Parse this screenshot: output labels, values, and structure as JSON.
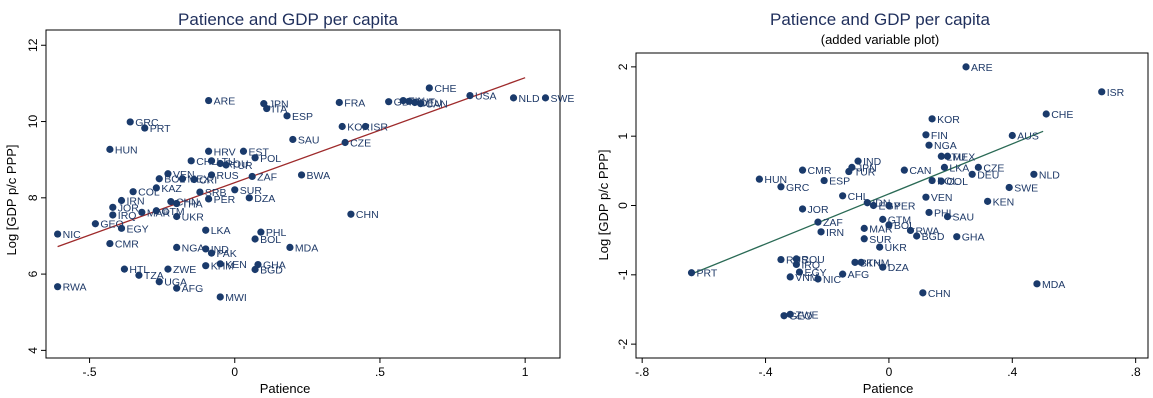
{
  "chart_data": [
    {
      "type": "scatter",
      "title": "Patience and GDP per capita",
      "subtitle": "",
      "xlabel": "Patience",
      "ylabel": "Log [GDP p/c PPP]",
      "xlim": [
        -0.65,
        1.12
      ],
      "ylim": [
        3.8,
        12.4
      ],
      "xticks": [
        -0.5,
        0,
        0.5,
        1
      ],
      "xtick_labels": [
        "-.5",
        "0",
        ".5",
        "1"
      ],
      "yticks": [
        4,
        6,
        8,
        10,
        12
      ],
      "ytick_labels": [
        "4",
        "6",
        "8",
        "10",
        "12"
      ],
      "point_color": "#1a3a6b",
      "fit_line": {
        "x": [
          -0.61,
          1.0
        ],
        "y": [
          6.72,
          11.15
        ],
        "color": "#9e2a2b"
      },
      "points": [
        {
          "label": "ARE",
          "x": -0.09,
          "y": 10.55
        },
        {
          "label": "JPN",
          "x": 0.1,
          "y": 10.47
        },
        {
          "label": "ITA",
          "x": 0.11,
          "y": 10.34
        },
        {
          "label": "ESP",
          "x": 0.18,
          "y": 10.15
        },
        {
          "label": "FRA",
          "x": 0.36,
          "y": 10.5
        },
        {
          "label": "GBR",
          "x": 0.53,
          "y": 10.52
        },
        {
          "label": "FIN",
          "x": 0.58,
          "y": 10.55
        },
        {
          "label": "AUT",
          "x": 0.6,
          "y": 10.53
        },
        {
          "label": "DEU",
          "x": 0.62,
          "y": 10.5
        },
        {
          "label": "CAN",
          "x": 0.64,
          "y": 10.47
        },
        {
          "label": "CHE",
          "x": 0.67,
          "y": 10.88
        },
        {
          "label": "USA",
          "x": 0.81,
          "y": 10.68
        },
        {
          "label": "NLD",
          "x": 0.96,
          "y": 10.62
        },
        {
          "label": "SWE",
          "x": 1.07,
          "y": 10.62
        },
        {
          "label": "KOR",
          "x": 0.37,
          "y": 9.87
        },
        {
          "label": "ISR",
          "x": 0.45,
          "y": 9.87
        },
        {
          "label": "CZE",
          "x": 0.38,
          "y": 9.45
        },
        {
          "label": "SAU",
          "x": 0.2,
          "y": 9.53
        },
        {
          "label": "GRC",
          "x": -0.36,
          "y": 9.99
        },
        {
          "label": "PRT",
          "x": -0.31,
          "y": 9.83
        },
        {
          "label": "HUN",
          "x": -0.43,
          "y": 9.27
        },
        {
          "label": "HRV",
          "x": -0.09,
          "y": 9.22
        },
        {
          "label": "EST",
          "x": 0.03,
          "y": 9.22
        },
        {
          "label": "POL",
          "x": 0.07,
          "y": 9.05
        },
        {
          "label": "CHL",
          "x": -0.15,
          "y": 8.97
        },
        {
          "label": "LTU",
          "x": -0.08,
          "y": 8.97
        },
        {
          "label": "ROU",
          "x": -0.05,
          "y": 8.9
        },
        {
          "label": "TUR",
          "x": -0.03,
          "y": 8.86
        },
        {
          "label": "BWA",
          "x": 0.23,
          "y": 8.6
        },
        {
          "label": "RUS",
          "x": -0.08,
          "y": 8.6
        },
        {
          "label": "ZAF",
          "x": 0.06,
          "y": 8.56
        },
        {
          "label": "VEN",
          "x": -0.23,
          "y": 8.63
        },
        {
          "label": "BOL",
          "x": -0.26,
          "y": 8.5
        },
        {
          "label": "MEX",
          "x": -0.18,
          "y": 8.5
        },
        {
          "label": "CRI",
          "x": -0.14,
          "y": 8.48
        },
        {
          "label": "KAZ",
          "x": -0.27,
          "y": 8.26
        },
        {
          "label": "COL",
          "x": -0.35,
          "y": 8.16
        },
        {
          "label": "SRB",
          "x": -0.12,
          "y": 8.15
        },
        {
          "label": "SUR",
          "x": 0.0,
          "y": 8.21
        },
        {
          "label": "DZA",
          "x": 0.05,
          "y": 8.0
        },
        {
          "label": "PER",
          "x": -0.09,
          "y": 7.97
        },
        {
          "label": "IRN",
          "x": -0.39,
          "y": 7.93
        },
        {
          "label": "CHN_left",
          "x": -0.22,
          "y": 7.9
        },
        {
          "label": "THA",
          "x": -0.2,
          "y": 7.85
        },
        {
          "label": "JOR",
          "x": -0.42,
          "y": 7.75
        },
        {
          "label": "MAR",
          "x": -0.32,
          "y": 7.62
        },
        {
          "label": "GTM",
          "x": -0.27,
          "y": 7.66
        },
        {
          "label": "IRQ",
          "x": -0.42,
          "y": 7.55
        },
        {
          "label": "UKR",
          "x": -0.2,
          "y": 7.51
        },
        {
          "label": "CHN",
          "x": 0.4,
          "y": 7.57
        },
        {
          "label": "GEO",
          "x": -0.48,
          "y": 7.32
        },
        {
          "label": "EGY",
          "x": -0.39,
          "y": 7.2
        },
        {
          "label": "LKA",
          "x": -0.1,
          "y": 7.15
        },
        {
          "label": "PHL",
          "x": 0.09,
          "y": 7.1
        },
        {
          "label": "BOL2",
          "x": 0.07,
          "y": 6.92
        },
        {
          "label": "NIC",
          "x": -0.61,
          "y": 7.05
        },
        {
          "label": "CMR",
          "x": -0.43,
          "y": 6.8
        },
        {
          "label": "MDA",
          "x": 0.19,
          "y": 6.7
        },
        {
          "label": "NGA",
          "x": -0.2,
          "y": 6.7
        },
        {
          "label": "IND",
          "x": -0.1,
          "y": 6.66
        },
        {
          "label": "PAK",
          "x": -0.08,
          "y": 6.55
        },
        {
          "label": "KHM",
          "x": -0.1,
          "y": 6.22
        },
        {
          "label": "KEN",
          "x": -0.05,
          "y": 6.27
        },
        {
          "label": "GHA",
          "x": 0.08,
          "y": 6.25
        },
        {
          "label": "BGD",
          "x": 0.07,
          "y": 6.12
        },
        {
          "label": "HTL",
          "x": -0.38,
          "y": 6.13
        },
        {
          "label": "ZWE",
          "x": -0.23,
          "y": 6.13
        },
        {
          "label": "TZA",
          "x": -0.33,
          "y": 5.97
        },
        {
          "label": "UGA",
          "x": -0.26,
          "y": 5.8
        },
        {
          "label": "AFG",
          "x": -0.2,
          "y": 5.63
        },
        {
          "label": "RWA",
          "x": -0.61,
          "y": 5.67
        },
        {
          "label": "MWI",
          "x": -0.05,
          "y": 5.4
        }
      ]
    },
    {
      "type": "scatter",
      "title": "Patience and GDP per capita",
      "subtitle": "(added variable plot)",
      "xlabel": "Patience",
      "ylabel": "Log [GDP p/c PPP]",
      "xlim": [
        -0.82,
        0.84
      ],
      "ylim": [
        -2.2,
        2.2
      ],
      "xticks": [
        -0.8,
        -0.4,
        0,
        0.4,
        0.8
      ],
      "xtick_labels": [
        "-.8",
        "-.4",
        "0",
        ".4",
        ".8"
      ],
      "yticks": [
        -2,
        -1,
        0,
        1,
        2
      ],
      "ytick_labels": [
        "-2",
        "-1",
        "0",
        "1",
        "2"
      ],
      "point_color": "#1a3a6b",
      "fit_line": {
        "x": [
          -0.63,
          0.5
        ],
        "y": [
          -0.97,
          1.07
        ],
        "color": "#2a6a55"
      },
      "points": [
        {
          "label": "ARE",
          "x": 0.25,
          "y": 2.0
        },
        {
          "label": "ISR",
          "x": 0.69,
          "y": 1.64
        },
        {
          "label": "CHE",
          "x": 0.51,
          "y": 1.32
        },
        {
          "label": "KOR",
          "x": 0.14,
          "y": 1.25
        },
        {
          "label": "FIN",
          "x": 0.12,
          "y": 1.02
        },
        {
          "label": "AUS",
          "x": 0.4,
          "y": 1.01
        },
        {
          "label": "NGA",
          "x": 0.13,
          "y": 0.87
        },
        {
          "label": "LTU",
          "x": 0.17,
          "y": 0.71
        },
        {
          "label": "MEX",
          "x": 0.19,
          "y": 0.71
        },
        {
          "label": "IND",
          "x": -0.1,
          "y": 0.64
        },
        {
          "label": "JPN",
          "x": -0.12,
          "y": 0.55
        },
        {
          "label": "TUR",
          "x": -0.13,
          "y": 0.49
        },
        {
          "label": "CMR",
          "x": -0.28,
          "y": 0.51
        },
        {
          "label": "CAN",
          "x": 0.05,
          "y": 0.51
        },
        {
          "label": "LKA",
          "x": 0.18,
          "y": 0.55
        },
        {
          "label": "CZE",
          "x": 0.29,
          "y": 0.55
        },
        {
          "label": "DEU",
          "x": 0.27,
          "y": 0.45
        },
        {
          "label": "NLD",
          "x": 0.47,
          "y": 0.45
        },
        {
          "label": "HUN",
          "x": -0.42,
          "y": 0.38
        },
        {
          "label": "GRC",
          "x": -0.35,
          "y": 0.27
        },
        {
          "label": "ESP",
          "x": -0.21,
          "y": 0.36
        },
        {
          "label": "POL",
          "x": 0.14,
          "y": 0.36
        },
        {
          "label": "COL",
          "x": 0.17,
          "y": 0.35
        },
        {
          "label": "SWE",
          "x": 0.39,
          "y": 0.26
        },
        {
          "label": "CHL",
          "x": -0.15,
          "y": 0.14
        },
        {
          "label": "VEN",
          "x": 0.12,
          "y": 0.12
        },
        {
          "label": "KEN",
          "x": 0.32,
          "y": 0.06
        },
        {
          "label": "JOR",
          "x": -0.28,
          "y": -0.05
        },
        {
          "label": "IDN",
          "x": -0.07,
          "y": 0.04
        },
        {
          "label": "PER",
          "x": 0.0,
          "y": 0.0
        },
        {
          "label": "EGY",
          "x": -0.05,
          "y": 0.0
        },
        {
          "label": "PHL",
          "x": 0.13,
          "y": -0.1
        },
        {
          "label": "SAU",
          "x": 0.19,
          "y": -0.16
        },
        {
          "label": "ZAF",
          "x": -0.23,
          "y": -0.24
        },
        {
          "label": "GTM",
          "x": -0.02,
          "y": -0.2
        },
        {
          "label": "BOL",
          "x": 0.0,
          "y": -0.28
        },
        {
          "label": "MAR",
          "x": -0.08,
          "y": -0.33
        },
        {
          "label": "IRN",
          "x": -0.22,
          "y": -0.38
        },
        {
          "label": "RWA",
          "x": 0.07,
          "y": -0.36
        },
        {
          "label": "BGD",
          "x": 0.09,
          "y": -0.44
        },
        {
          "label": "GHA",
          "x": 0.22,
          "y": -0.45
        },
        {
          "label": "SUR",
          "x": -0.08,
          "y": -0.48
        },
        {
          "label": "UKR",
          "x": -0.03,
          "y": -0.6
        },
        {
          "label": "RUS",
          "x": -0.35,
          "y": -0.78
        },
        {
          "label": "ROU",
          "x": -0.3,
          "y": -0.77
        },
        {
          "label": "IRQ",
          "x": -0.3,
          "y": -0.85
        },
        {
          "label": "EGY2",
          "x": -0.29,
          "y": -0.96
        },
        {
          "label": "VNM",
          "x": -0.32,
          "y": -1.03
        },
        {
          "label": "BTN",
          "x": -0.11,
          "y": -0.82
        },
        {
          "label": "KHM",
          "x": -0.09,
          "y": -0.82
        },
        {
          "label": "DZA",
          "x": -0.02,
          "y": -0.89
        },
        {
          "label": "AFG",
          "x": -0.15,
          "y": -0.99
        },
        {
          "label": "NIC",
          "x": -0.23,
          "y": -1.06
        },
        {
          "label": "PRT",
          "x": -0.64,
          "y": -0.97
        },
        {
          "label": "MDA",
          "x": 0.48,
          "y": -1.13
        },
        {
          "label": "CHN",
          "x": 0.11,
          "y": -1.26
        },
        {
          "label": "ZWE",
          "x": -0.32,
          "y": -1.57
        },
        {
          "label": "GEO",
          "x": -0.34,
          "y": -1.59
        }
      ]
    }
  ]
}
